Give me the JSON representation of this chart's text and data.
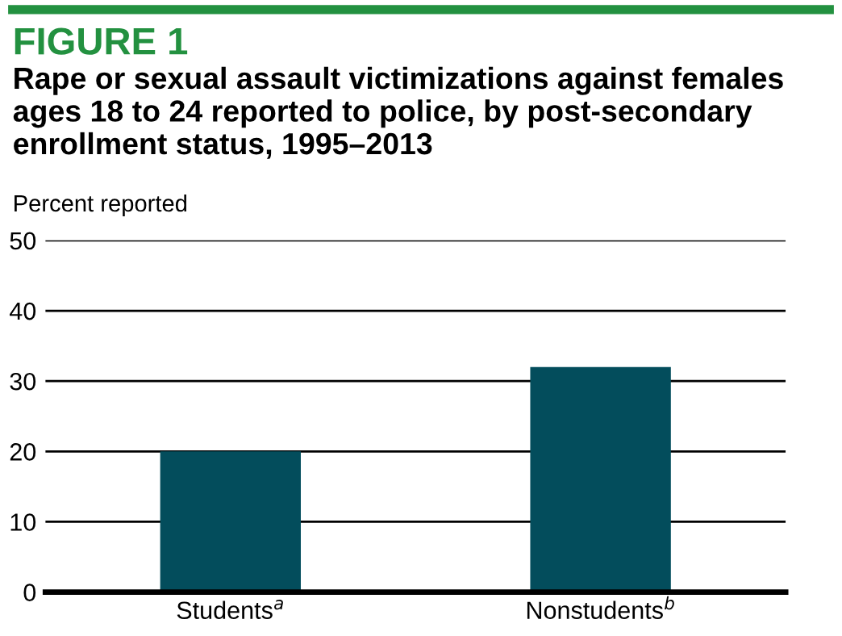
{
  "chart_data": {
    "type": "bar",
    "title": "FIGURE 1",
    "subtitle": "Rape or sexual assault victimizations against females ages 18 to 24 reported to police, by post-secondary enrollment status, 1995–2013",
    "ylabel": "Percent reported",
    "categories": [
      "Students$^{a}$",
      "Nonstudents$^{b}$"
    ],
    "values": [
      20,
      32
    ],
    "color": "#034d5c",
    "ylim": [
      0,
      50
    ],
    "yticks": [
      0,
      10,
      20,
      30,
      40,
      50
    ],
    "grid": "y"
  }
}
